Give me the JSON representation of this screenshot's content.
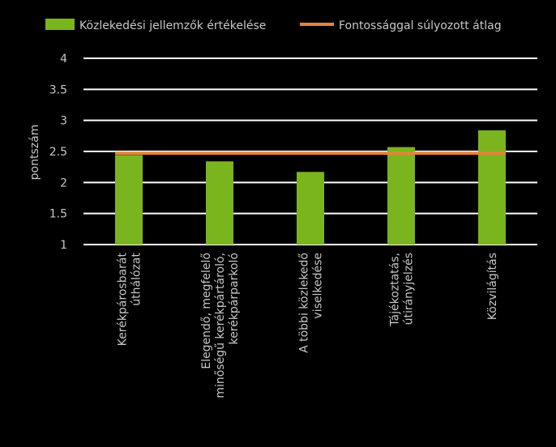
{
  "chart_data": {
    "type": "bar",
    "categories": [
      [
        "Kerékpárosbarát",
        "úthálózat"
      ],
      [
        "Elegendő, megfelelő",
        "minőségű kerékpártároló,",
        "kerékpárparkoló"
      ],
      [
        "A többi közlekedő",
        "viselkedése"
      ],
      [
        "Tájékoztatás,",
        "útirányjelzés"
      ],
      [
        "Közvilágítás"
      ]
    ],
    "series": [
      {
        "name": "Közlekedési jellemzők értékelése",
        "type": "bar",
        "color": "#7ab51d",
        "values": [
          2.44,
          2.34,
          2.17,
          2.57,
          2.84
        ]
      },
      {
        "name": "Fontossággal súlyozott átlag",
        "type": "line",
        "color": "#e8823a",
        "values": [
          2.47,
          2.47,
          2.47,
          2.47,
          2.47
        ]
      }
    ],
    "ylabel": "pontszám",
    "yticks": [
      "1",
      "1.5",
      "2",
      "2.5",
      "3",
      "3.5",
      "4"
    ],
    "ylim": [
      1,
      4
    ],
    "grid": true,
    "legend": "top"
  }
}
